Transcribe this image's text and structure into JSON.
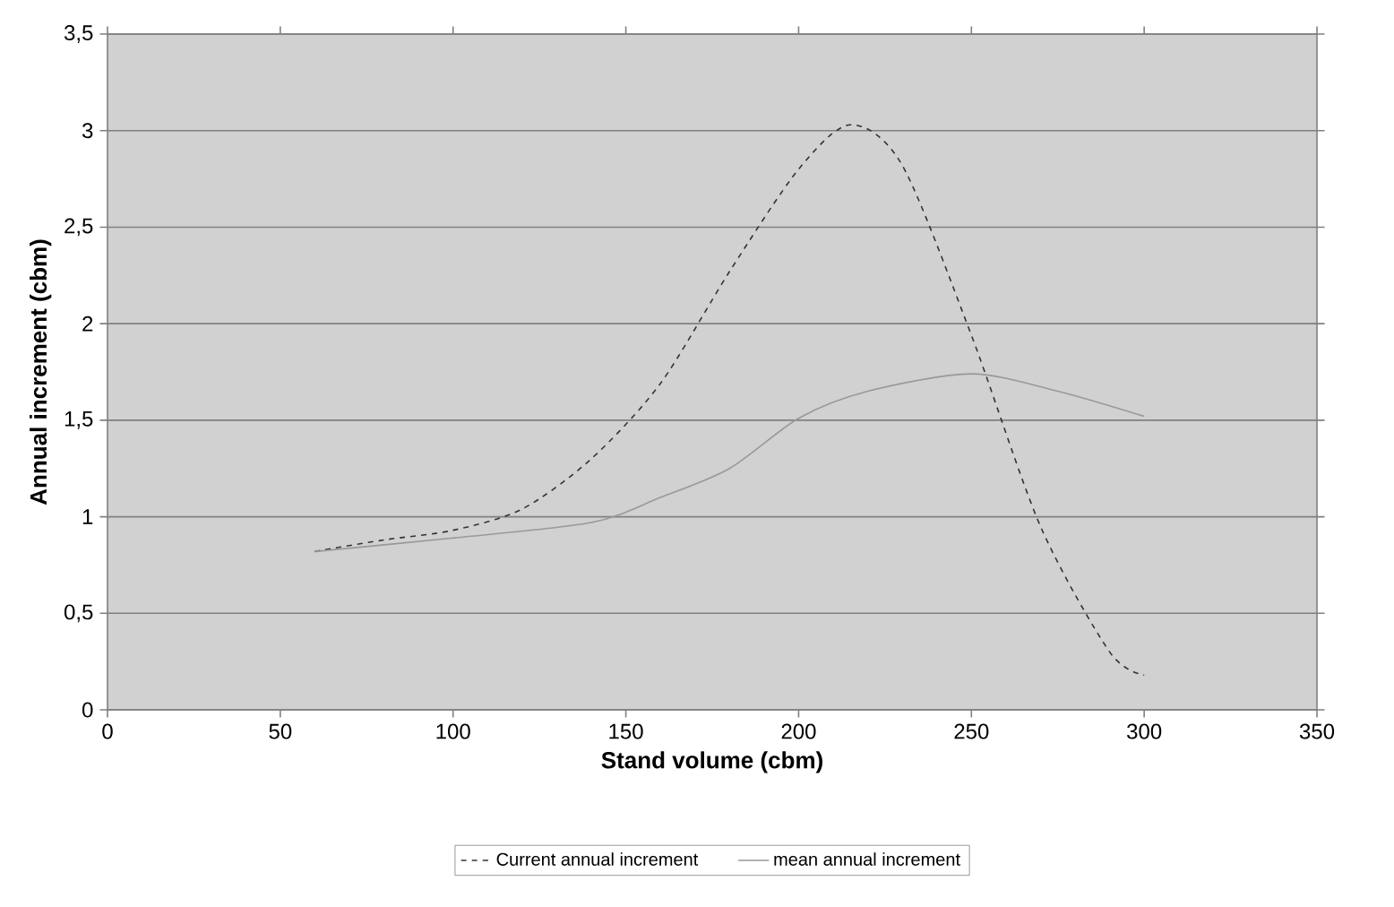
{
  "chart_data": {
    "type": "line",
    "xlabel": "Stand volume (cbm)",
    "ylabel": "Annual increment (cbm)",
    "xlim": [
      0,
      350
    ],
    "xticks": [
      0,
      50,
      100,
      150,
      200,
      250,
      300,
      350
    ],
    "ylim": [
      0,
      3.5
    ],
    "yticks": [
      0,
      {
        "value": 0.5,
        "label": "0,5"
      },
      1,
      {
        "value": 1.5,
        "label": "1,5"
      },
      2,
      {
        "value": 2.5,
        "label": "2,5"
      },
      3,
      {
        "value": 3.5,
        "label": "3,5"
      }
    ],
    "grid": "y",
    "legend": "bottom",
    "series": [
      {
        "name": "Current annual increment",
        "color": "#333333",
        "line_style": "dashed",
        "x": [
          60,
          80,
          100,
          120,
          140,
          160,
          180,
          200,
          215,
          230,
          250,
          270,
          290,
          300
        ],
        "values": [
          0.82,
          0.88,
          0.93,
          1.04,
          1.3,
          1.69,
          2.27,
          2.8,
          3.03,
          2.82,
          1.94,
          0.95,
          0.3,
          0.18
        ]
      },
      {
        "name": "mean annual increment",
        "color": "#999999",
        "line_style": "solid",
        "x": [
          60,
          100,
          140,
          160,
          180,
          200,
          220,
          250,
          275,
          300
        ],
        "values": [
          0.82,
          0.89,
          0.97,
          1.1,
          1.25,
          1.51,
          1.65,
          1.74,
          1.65,
          1.52
        ]
      }
    ]
  }
}
